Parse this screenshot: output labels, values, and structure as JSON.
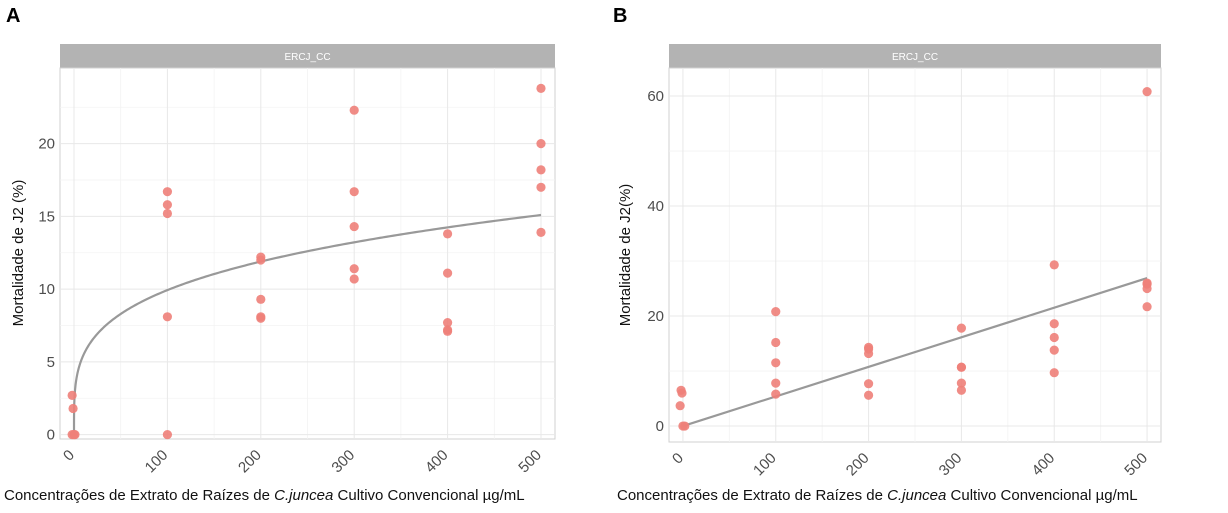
{
  "chart_data": [
    {
      "panel": "A",
      "strip_label": "ERCJ_CC",
      "type": "scatter",
      "xlabel_prefix": "Concentrações de Extrato de Raízes de ",
      "xlabel_italic": "C.juncea",
      "xlabel_suffix": " Cultivo Convencional µg/mL",
      "ylabel": "Mortalidade de J2 (%)",
      "xticks": [
        "0",
        "100",
        "200",
        "300",
        "400",
        "500"
      ],
      "yticks": [
        "0",
        "5",
        "10",
        "15",
        "20"
      ],
      "xlim": [
        -15,
        515
      ],
      "ylim": [
        -0.3,
        25.2
      ],
      "grid": true,
      "points": [
        [
          -2,
          2.7
        ],
        [
          -1,
          1.8
        ],
        [
          -2,
          0
        ],
        [
          0,
          0
        ],
        [
          1,
          0
        ],
        [
          100,
          16.7
        ],
        [
          100,
          15.8
        ],
        [
          100,
          15.2
        ],
        [
          100,
          8.1
        ],
        [
          100,
          0
        ],
        [
          200,
          12.2
        ],
        [
          200,
          12.0
        ],
        [
          200,
          9.3
        ],
        [
          200,
          8.1
        ],
        [
          200,
          8.0
        ],
        [
          300,
          22.3
        ],
        [
          300,
          16.7
        ],
        [
          300,
          14.3
        ],
        [
          300,
          11.4
        ],
        [
          300,
          10.7
        ],
        [
          400,
          13.8
        ],
        [
          400,
          11.1
        ],
        [
          400,
          7.7
        ],
        [
          400,
          7.2
        ],
        [
          400,
          7.1
        ],
        [
          500,
          23.8
        ],
        [
          500,
          20.0
        ],
        [
          500,
          18.2
        ],
        [
          500,
          17.0
        ],
        [
          500,
          13.9
        ]
      ],
      "fit": {
        "model": "power",
        "a": 3.0,
        "b": 0.26
      }
    },
    {
      "panel": "B",
      "strip_label": "ERCJ_CC",
      "type": "scatter",
      "xlabel_prefix": "Concentrações de Extrato de Raízes de ",
      "xlabel_italic": "C.juncea",
      "xlabel_suffix": " Cultivo Convencional µg/mL",
      "ylabel": "Mortalidade de J2(%)",
      "xticks": [
        "0",
        "100",
        "200",
        "300",
        "400",
        "500"
      ],
      "yticks": [
        "0",
        "20",
        "40",
        "60"
      ],
      "xlim": [
        -15,
        515
      ],
      "ylim": [
        -2.9,
        65.1
      ],
      "grid": true,
      "points": [
        [
          -2,
          6.5
        ],
        [
          -1,
          6.0
        ],
        [
          -3,
          3.7
        ],
        [
          0,
          0
        ],
        [
          2,
          0
        ],
        [
          100,
          20.8
        ],
        [
          100,
          15.2
        ],
        [
          100,
          11.5
        ],
        [
          100,
          7.8
        ],
        [
          100,
          5.8
        ],
        [
          200,
          14.3
        ],
        [
          200,
          14.0
        ],
        [
          200,
          13.2
        ],
        [
          200,
          7.7
        ],
        [
          200,
          5.6
        ],
        [
          300,
          17.8
        ],
        [
          300,
          10.7
        ],
        [
          300,
          10.7
        ],
        [
          300,
          7.8
        ],
        [
          300,
          6.5
        ],
        [
          400,
          29.3
        ],
        [
          400,
          18.6
        ],
        [
          400,
          16.1
        ],
        [
          400,
          13.8
        ],
        [
          400,
          9.7
        ],
        [
          500,
          60.8
        ],
        [
          500,
          26.0
        ],
        [
          500,
          25.8
        ],
        [
          500,
          25.0
        ],
        [
          500,
          21.7
        ]
      ],
      "fit": {
        "model": "linear",
        "slope": 0.0538,
        "intercept": 0
      }
    }
  ]
}
